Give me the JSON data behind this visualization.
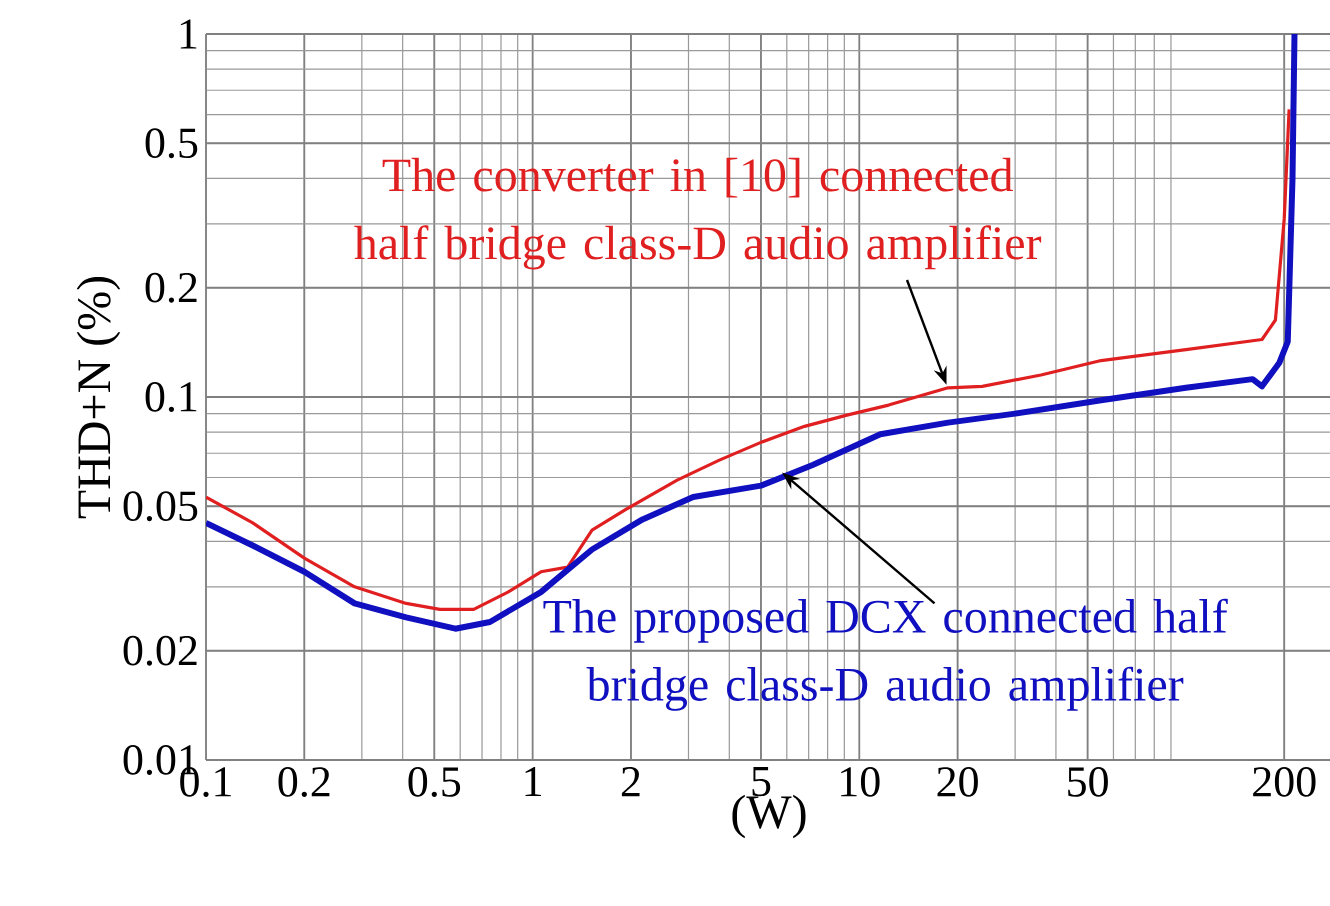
{
  "chart_data": {
    "type": "line",
    "xlabel": "(W)",
    "ylabel": "THD+N  (%)",
    "log": "xy",
    "grid": true,
    "marker": "none",
    "line_style": "solid",
    "xlim": [
      0.1,
      280
    ],
    "ylim": [
      0.01,
      1
    ],
    "xticks": [
      0.1,
      0.2,
      0.5,
      1,
      2,
      5,
      10,
      20,
      50,
      200
    ],
    "yticks": [
      0.01,
      0.02,
      0.05,
      0.1,
      0.2,
      0.5,
      1
    ],
    "series": [
      {
        "name": "The converter in [10] connected half bridge class-D audio amplifier",
        "color": "#e02020",
        "x": [
          0.1,
          0.139,
          0.2,
          0.285,
          0.41,
          0.52,
          0.66,
          0.84,
          1.06,
          1.28,
          1.52,
          1.93,
          2.77,
          3.73,
          5.0,
          6.8,
          9.1,
          12.3,
          18.7,
          23.8,
          36,
          55,
          100,
          171,
          188,
          200,
          207
        ],
        "values": [
          0.053,
          0.045,
          0.036,
          0.03,
          0.027,
          0.026,
          0.026,
          0.029,
          0.033,
          0.034,
          0.043,
          0.049,
          0.059,
          0.067,
          0.075,
          0.083,
          0.089,
          0.095,
          0.106,
          0.107,
          0.115,
          0.126,
          0.135,
          0.144,
          0.163,
          0.31,
          0.62
        ]
      },
      {
        "name": "The proposed DCX connected half bridge class-D audio amplifier",
        "color": "#1010c0",
        "x": [
          0.1,
          0.139,
          0.2,
          0.285,
          0.41,
          0.58,
          0.74,
          1.06,
          1.52,
          2.17,
          3.1,
          5.0,
          7.2,
          11.6,
          18.7,
          30,
          55,
          100,
          160,
          171,
          193,
          205,
          212,
          215
        ],
        "values": [
          0.045,
          0.039,
          0.033,
          0.027,
          0.0247,
          0.023,
          0.024,
          0.029,
          0.038,
          0.046,
          0.053,
          0.057,
          0.065,
          0.079,
          0.085,
          0.09,
          0.098,
          0.106,
          0.112,
          0.107,
          0.124,
          0.142,
          0.4,
          1.0
        ]
      }
    ]
  }
}
